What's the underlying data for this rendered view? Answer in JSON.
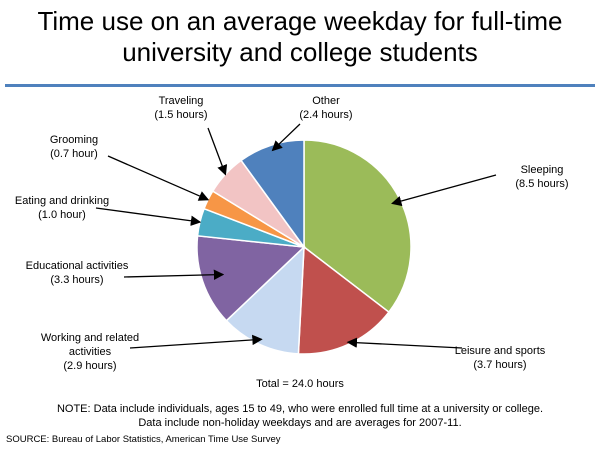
{
  "title": {
    "line1": "Time use on an average weekday for full-time",
    "line2": "university and college students"
  },
  "chart_data": {
    "type": "pie",
    "title": "Time use on an average weekday for full-time university and college students",
    "unit": "hours",
    "slices": [
      {
        "name": "Sleeping",
        "value": 8.5,
        "label_line1": "Sleeping",
        "label_line2": "(8.5 hours)",
        "color": "#9bbb59"
      },
      {
        "name": "Leisure and sports",
        "value": 3.7,
        "label_line1": "Leisure and sports",
        "label_line2": "(3.7 hours)",
        "color": "#c0504d"
      },
      {
        "name": "Working and related activities",
        "value": 2.9,
        "label_line1": "Working and related",
        "label_line2": "activities",
        "label_line3": "(2.9 hours)",
        "color": "#c6d9f1"
      },
      {
        "name": "Educational activities",
        "value": 3.3,
        "label_line1": "Educational activities",
        "label_line2": "(3.3 hours)",
        "color": "#8064a2"
      },
      {
        "name": "Eating and drinking",
        "value": 1.0,
        "label_line1": "Eating and drinking",
        "label_line2": "(1.0 hour)",
        "color": "#4bacc6"
      },
      {
        "name": "Grooming",
        "value": 0.7,
        "label_line1": "Grooming",
        "label_line2": "(0.7 hour)",
        "color": "#f79646"
      },
      {
        "name": "Traveling",
        "value": 1.5,
        "label_line1": "Traveling",
        "label_line2": "(1.5 hours)",
        "color": "#f2c4c4"
      },
      {
        "name": "Other",
        "value": 2.4,
        "label_line1": "Other",
        "label_line2": "(2.4 hours)",
        "color": "#4f81bd"
      }
    ],
    "total_label": "Total = 24.0 hours"
  },
  "note": {
    "line1": "NOTE: Data include individuals, ages 15 to 49, who were enrolled full time at a university or college.",
    "line2": "Data include non-holiday weekdays and are averages for 2007-11."
  },
  "source": "SOURCE: Bureau of Labor Statistics, American Time Use Survey"
}
